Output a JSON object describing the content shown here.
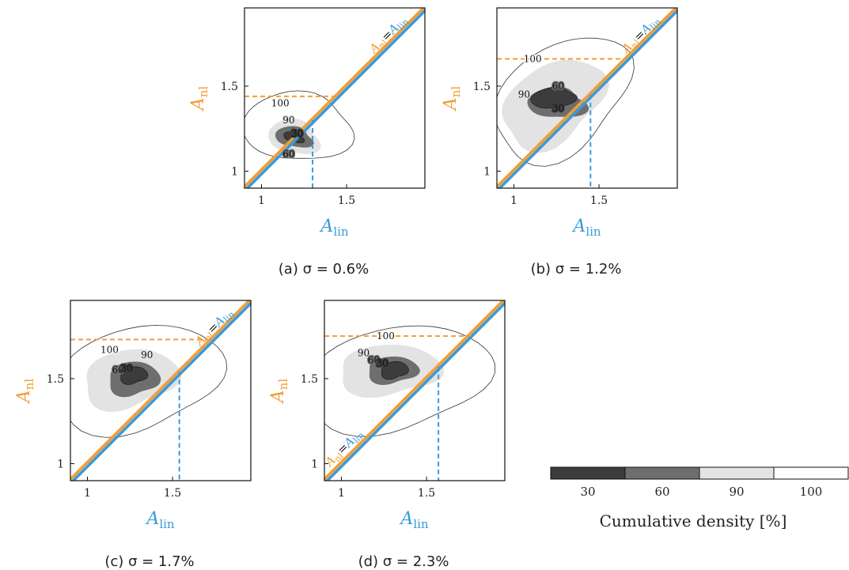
{
  "colors": {
    "nl": "#F39C34",
    "lin": "#3A9AD9",
    "c30": "#3c3c3c",
    "c60": "#6e6e6e",
    "c90": "#e3e3e3",
    "c100": "#ffffff",
    "frame": "#111111"
  },
  "chart_data": [
    {
      "type": "contour",
      "caption": "(a) σ = 0.6%",
      "xlabel": "A_lin",
      "ylabel": "A_nl",
      "xticks": [
        1,
        1.5
      ],
      "yticks": [
        1,
        1.5
      ],
      "xlim": [
        0.9,
        1.96
      ],
      "ylim": [
        0.9,
        1.96
      ],
      "identity_label": "A_nl = A_lin",
      "levels": [
        30,
        60,
        90,
        100
      ],
      "max_nl": 1.44,
      "max_lin": 1.3,
      "mode": [
        1.19,
        1.2
      ]
    },
    {
      "type": "contour",
      "caption": "(b) σ = 1.2%",
      "xlabel": "A_lin",
      "ylabel": "A_nl",
      "xticks": [
        1,
        1.5
      ],
      "yticks": [
        1,
        1.5
      ],
      "xlim": [
        0.9,
        1.96
      ],
      "ylim": [
        0.9,
        1.96
      ],
      "identity_label": "A_nl = A_lin",
      "levels": [
        30,
        60,
        90,
        100
      ],
      "max_nl": 1.66,
      "max_lin": 1.45,
      "mode": [
        1.23,
        1.4
      ]
    },
    {
      "type": "contour",
      "caption": "(c) σ = 1.7%",
      "xlabel": "A_lin",
      "ylabel": "A_nl",
      "xticks": [
        1,
        1.5
      ],
      "yticks": [
        1,
        1.5
      ],
      "xlim": [
        0.9,
        1.96
      ],
      "ylim": [
        0.9,
        1.96
      ],
      "identity_label": "A_nl = A_lin",
      "levels": [
        30,
        60,
        90,
        100
      ],
      "max_nl": 1.73,
      "max_lin": 1.54,
      "mode": [
        1.27,
        1.5
      ]
    },
    {
      "type": "contour",
      "caption": "(d) σ = 2.3%",
      "xlabel": "A_lin",
      "ylabel": "A_nl",
      "xticks": [
        1,
        1.5
      ],
      "yticks": [
        1,
        1.5
      ],
      "xlim": [
        0.9,
        1.96
      ],
      "ylim": [
        0.9,
        1.96
      ],
      "identity_label": "A_nl = A_lin",
      "levels": [
        30,
        60,
        90,
        100
      ],
      "max_nl": 1.75,
      "max_lin": 1.57,
      "mode": [
        1.28,
        1.55
      ]
    }
  ],
  "colorbar": {
    "labels": [
      "30",
      "60",
      "90",
      "100"
    ],
    "title": "Cumulative density [%]"
  }
}
